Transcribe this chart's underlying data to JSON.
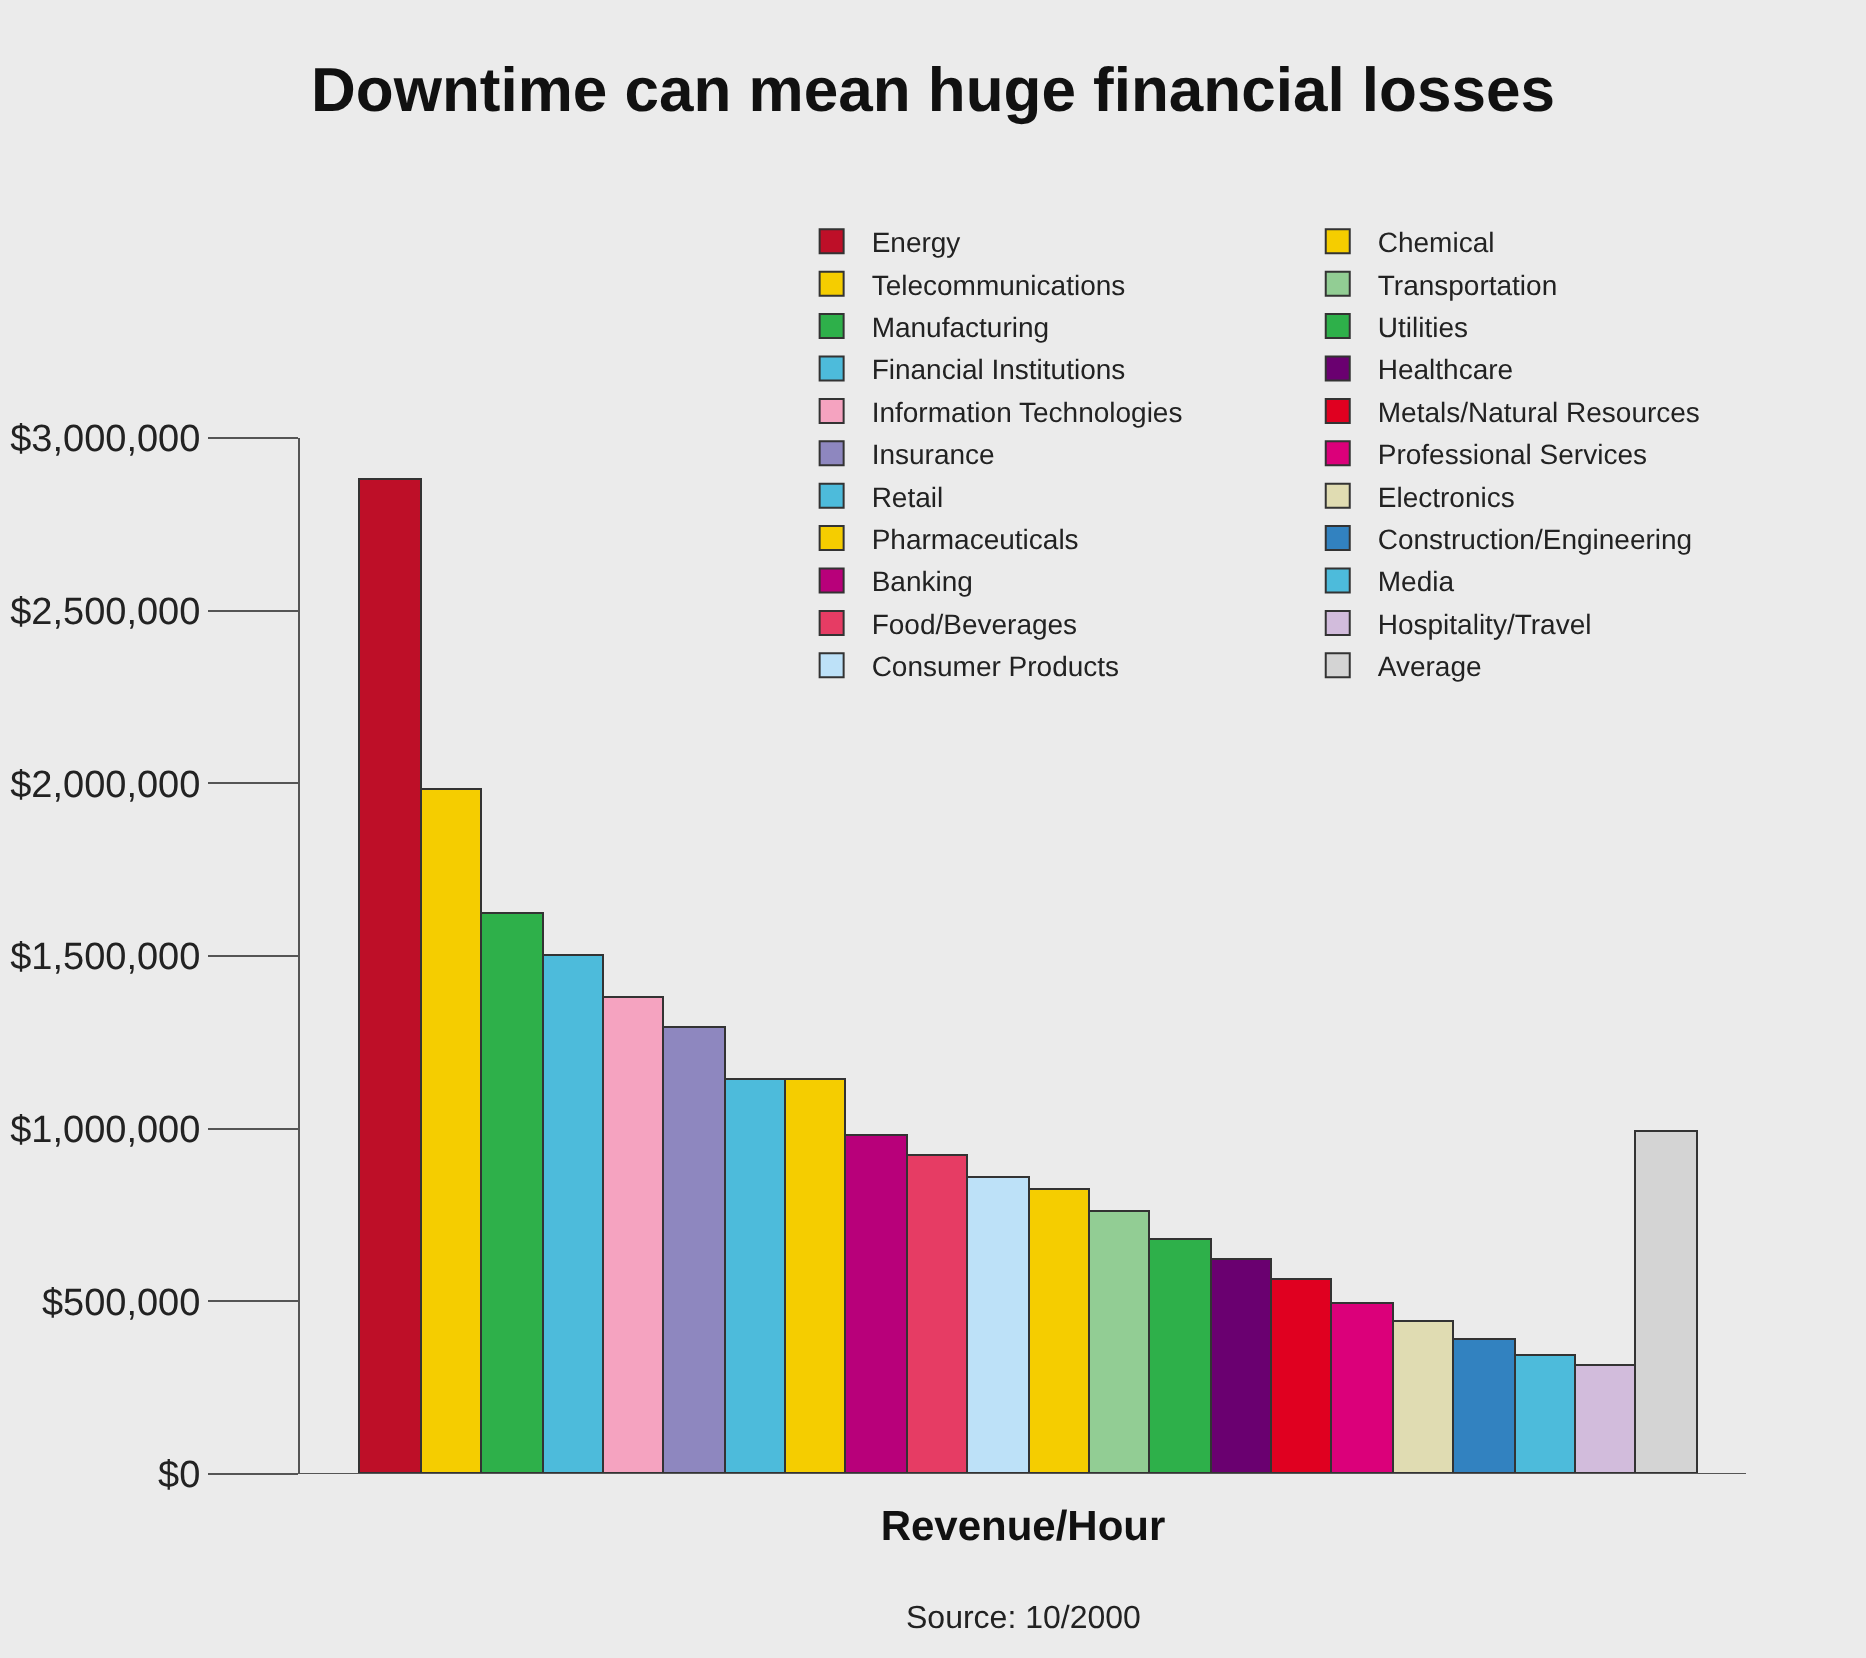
{
  "chart_data": {
    "type": "bar",
    "title": "Downtime can mean huge financial losses",
    "xlabel": "Revenue/Hour",
    "stacked": true,
    "categories": [
      null,
      null,
      null,
      null,
      null,
      null,
      null,
      null,
      null,
      null,
      null,
      null,
      null,
      null,
      null,
      null,
      null,
      null,
      null,
      null,
      null,
      null
    ],
    "series": [
      {
        "name": "Energy",
        "color": "#be0f28",
        "values": [
          2880000,
          null,
          null,
          null,
          null,
          null,
          null,
          null,
          null,
          null,
          null,
          null,
          null,
          null,
          null,
          null,
          null,
          null,
          null,
          null,
          null,
          null
        ]
      },
      {
        "name": "Telecommunications",
        "color": "#f5cd00",
        "values": [
          null,
          1980000,
          null,
          null,
          null,
          null,
          null,
          null,
          null,
          null,
          null,
          null,
          null,
          null,
          null,
          null,
          null,
          null,
          null,
          null,
          null,
          null
        ]
      },
      {
        "name": "Manufacturing",
        "color": "#2eb04a",
        "values": [
          null,
          null,
          1620000,
          null,
          null,
          null,
          null,
          null,
          null,
          null,
          null,
          null,
          null,
          null,
          null,
          null,
          null,
          null,
          null,
          null,
          null,
          null
        ]
      },
      {
        "name": "Financial Institutions",
        "color": "#4dbbdb",
        "values": [
          null,
          null,
          null,
          1500000,
          null,
          null,
          null,
          null,
          null,
          null,
          null,
          null,
          null,
          null,
          null,
          null,
          null,
          null,
          null,
          null,
          null,
          null
        ]
      },
      {
        "name": "Information Technologies",
        "color": "#f5a3c0",
        "values": [
          null,
          null,
          null,
          null,
          1380000,
          null,
          null,
          null,
          null,
          null,
          null,
          null,
          null,
          null,
          null,
          null,
          null,
          null,
          null,
          null,
          null,
          null
        ]
      },
      {
        "name": "Insurance",
        "color": "#8e87bf",
        "values": [
          null,
          null,
          null,
          null,
          null,
          1290000,
          null,
          null,
          null,
          null,
          null,
          null,
          null,
          null,
          null,
          null,
          null,
          null,
          null,
          null,
          null,
          null
        ]
      },
      {
        "name": "Retail",
        "color": "#4dbbdb",
        "values": [
          null,
          null,
          null,
          null,
          null,
          null,
          1140000,
          null,
          null,
          null,
          null,
          null,
          null,
          null,
          null,
          null,
          null,
          null,
          null,
          null,
          null,
          null
        ]
      },
      {
        "name": "Pharmaceuticals",
        "color": "#f5cd00",
        "values": [
          null,
          null,
          null,
          null,
          null,
          null,
          null,
          1140000,
          null,
          null,
          null,
          null,
          null,
          null,
          null,
          null,
          null,
          null,
          null,
          null,
          null,
          null
        ]
      },
      {
        "name": "Banking",
        "color": "#b8007a",
        "values": [
          null,
          null,
          null,
          null,
          null,
          null,
          null,
          null,
          980000,
          null,
          null,
          null,
          null,
          null,
          null,
          null,
          null,
          null,
          null,
          null,
          null,
          null
        ]
      },
      {
        "name": "Food/Beverages",
        "color": "#e63c64",
        "values": [
          null,
          null,
          null,
          null,
          null,
          null,
          null,
          null,
          null,
          920000,
          null,
          null,
          null,
          null,
          null,
          null,
          null,
          null,
          null,
          null,
          null,
          null
        ]
      },
      {
        "name": "Consumer Products",
        "color": "#bde1f8",
        "values": [
          null,
          null,
          null,
          null,
          null,
          null,
          null,
          null,
          null,
          null,
          860000,
          null,
          null,
          null,
          null,
          null,
          null,
          null,
          null,
          null,
          null,
          null
        ]
      },
      {
        "name": "Chemical",
        "color": "#f5cd00",
        "values": [
          null,
          null,
          null,
          null,
          null,
          null,
          null,
          null,
          null,
          null,
          null,
          820000,
          null,
          null,
          null,
          null,
          null,
          null,
          null,
          null,
          null,
          null
        ]
      },
      {
        "name": "Transportation",
        "color": "#92cd94",
        "values": [
          null,
          null,
          null,
          null,
          null,
          null,
          null,
          null,
          null,
          null,
          null,
          null,
          760000,
          null,
          null,
          null,
          null,
          null,
          null,
          null,
          null,
          null
        ]
      },
      {
        "name": "Utilities",
        "color": "#2eb04a",
        "values": [
          null,
          null,
          null,
          null,
          null,
          null,
          null,
          null,
          null,
          null,
          null,
          null,
          null,
          680000,
          null,
          null,
          null,
          null,
          null,
          null,
          null,
          null
        ]
      },
      {
        "name": "Healthcare",
        "color": "#6a0070",
        "values": [
          null,
          null,
          null,
          null,
          null,
          null,
          null,
          null,
          null,
          null,
          null,
          null,
          null,
          null,
          620000,
          null,
          null,
          null,
          null,
          null,
          null,
          null
        ]
      },
      {
        "name": "Metals/Natural Resources",
        "color": "#e00020",
        "values": [
          null,
          null,
          null,
          null,
          null,
          null,
          null,
          null,
          null,
          null,
          null,
          null,
          null,
          null,
          null,
          560000,
          null,
          null,
          null,
          null,
          null,
          null
        ]
      },
      {
        "name": "Professional Services",
        "color": "#db007a",
        "values": [
          null,
          null,
          null,
          null,
          null,
          null,
          null,
          null,
          null,
          null,
          null,
          null,
          null,
          null,
          null,
          null,
          490000,
          null,
          null,
          null,
          null,
          null
        ]
      },
      {
        "name": "Electronics",
        "color": "#e0dcb2",
        "values": [
          null,
          null,
          null,
          null,
          null,
          null,
          null,
          null,
          null,
          null,
          null,
          null,
          null,
          null,
          null,
          null,
          null,
          440000,
          null,
          null,
          null,
          null
        ]
      },
      {
        "name": "Construction/Engineering",
        "color": "#3282c0",
        "values": [
          null,
          null,
          null,
          null,
          null,
          null,
          null,
          null,
          null,
          null,
          null,
          null,
          null,
          null,
          null,
          null,
          null,
          null,
          390000,
          null,
          null,
          null
        ]
      },
      {
        "name": "Media",
        "color": "#4dbbdb",
        "values": [
          null,
          null,
          null,
          null,
          null,
          null,
          null,
          null,
          null,
          null,
          null,
          null,
          null,
          null,
          null,
          null,
          null,
          null,
          null,
          340000,
          null,
          null
        ]
      },
      {
        "name": "Hospitality/Travel",
        "color": "#d2bcdc",
        "values": [
          null,
          null,
          null,
          null,
          null,
          null,
          null,
          null,
          null,
          null,
          null,
          null,
          null,
          null,
          null,
          null,
          null,
          null,
          null,
          null,
          310000,
          null
        ]
      },
      {
        "name": "Average",
        "color": "#d4d4d4",
        "values": [
          null,
          null,
          null,
          null,
          null,
          null,
          null,
          null,
          null,
          null,
          null,
          null,
          null,
          null,
          null,
          null,
          null,
          null,
          null,
          null,
          null,
          990000
        ]
      }
    ],
    "ylim": [
      0,
      3000000
    ],
    "yticks": [
      {
        "value": 0,
        "label": "$0"
      },
      {
        "value": 500000,
        "label": "$500,000"
      },
      {
        "value": 1000000,
        "label": "$1,000,000"
      },
      {
        "value": 1500000,
        "label": "$1,500,000"
      },
      {
        "value": 2000000,
        "label": "$2,000,000"
      },
      {
        "value": 2500000,
        "label": "$2,500,000"
      },
      {
        "value": 3000000,
        "label": "$3,000,000"
      }
    ],
    "tick_labels": "y",
    "grid": false,
    "legend": "top right",
    "annotations": [
      "Source: 10/2000"
    ]
  }
}
